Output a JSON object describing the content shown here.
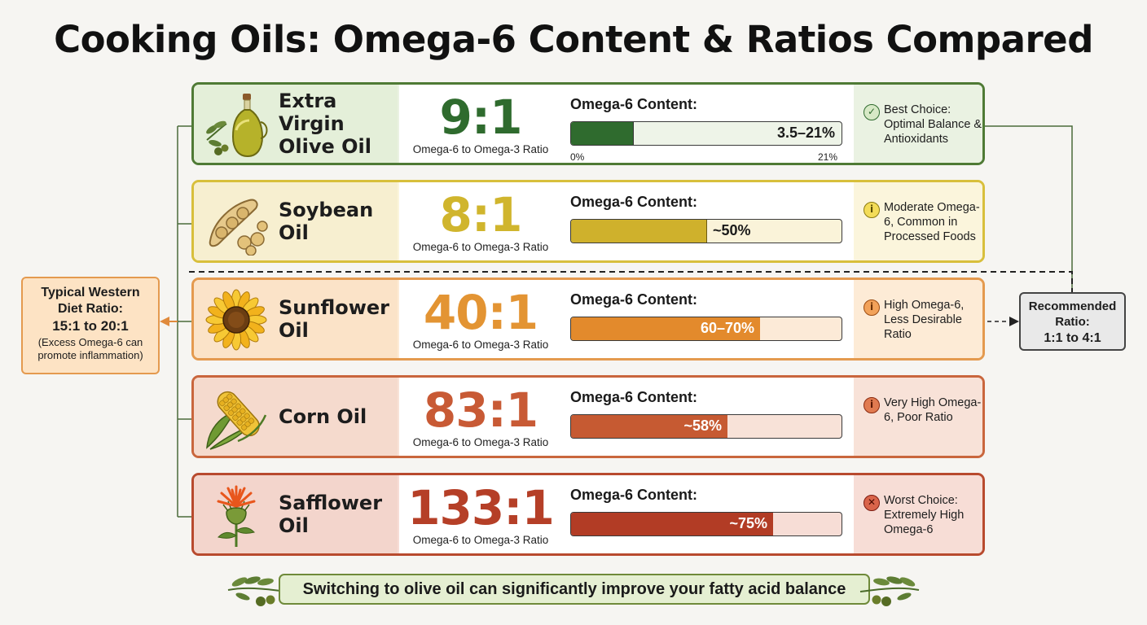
{
  "title": "Cooking Oils: Omega-6 Content & Ratios Compared",
  "ratio_caption": "Omega-6 to Omega-3 Ratio",
  "content_label": "Omega-6 Content:",
  "oils": [
    {
      "name_line1": "Extra Virgin",
      "name_line2": "Olive Oil",
      "icon": "olive-oil-bottle-icon",
      "ratio": "9:1",
      "bar_text": "3.5–21%",
      "bar_fill_fraction": 0.23,
      "axis_min": "0%",
      "axis_max": "21%",
      "note": "Best Choice: Optimal Balance & Antioxidants",
      "note_icon": "checkmark-circle-icon",
      "colors": {
        "border": "#4f7a35",
        "bg": "#eaf2e2",
        "ratio": "#2f6b2e",
        "fill": "#2f6b2e",
        "track": "#eef4e8",
        "icon_bg": "#e4efd9"
      }
    },
    {
      "name_line1": "Soybean",
      "name_line2": "Oil",
      "icon": "soybean-pod-icon",
      "ratio": "8:1",
      "bar_text": "~50%",
      "bar_fill_fraction": 0.5,
      "note": "Moderate Omega-6, Common in Processed Foods",
      "note_icon": "info-circle-icon",
      "colors": {
        "border": "#d8bf3c",
        "bg": "#fbf5dc",
        "ratio": "#d0b52d",
        "fill": "#cfb12c",
        "track": "#faf3d9",
        "icon_bg": "#f7efd0"
      }
    },
    {
      "name_line1": "Sunflower",
      "name_line2": "Oil",
      "icon": "sunflower-icon",
      "ratio": "40:1",
      "bar_text": "60–70%",
      "bar_fill_fraction": 0.7,
      "note": "High Omega-6, Less Desirable Ratio",
      "note_icon": "info-circle-icon",
      "colors": {
        "border": "#e49a4f",
        "bg": "#fdebd6",
        "ratio": "#e39433",
        "fill": "#e38a2c",
        "track": "#fcead7",
        "icon_bg": "#fbe3c8"
      }
    },
    {
      "name_line1": "Corn Oil",
      "name_line2": "",
      "icon": "corn-cob-icon",
      "ratio": "83:1",
      "bar_text": "~58%",
      "bar_fill_fraction": 0.58,
      "note": "Very High Omega-6, Poor Ratio",
      "note_icon": "info-circle-icon",
      "colors": {
        "border": "#c9663d",
        "bg": "#f8e2d8",
        "ratio": "#c85a35",
        "fill": "#c65a32",
        "track": "#f8e2d8",
        "icon_bg": "#f5dacd"
      }
    },
    {
      "name_line1": "Safflower",
      "name_line2": "Oil",
      "icon": "safflower-flower-icon",
      "ratio": "133:1",
      "bar_text": "~75%",
      "bar_fill_fraction": 0.75,
      "note": "Worst Choice: Extremely High Omega-6",
      "note_icon": "x-circle-icon",
      "colors": {
        "border": "#b84a2e",
        "bg": "#f7ddd6",
        "ratio": "#b53f27",
        "fill": "#b23c25",
        "track": "#f7ddd6",
        "icon_bg": "#f3d5cc"
      }
    }
  ],
  "western_diet": {
    "title_line1": "Typical Western",
    "title_line2": "Diet Ratio:",
    "value": "15:1 to 20:1",
    "note_line1": "(Excess Omega-6 can",
    "note_line2": "promote inflammation)"
  },
  "recommended": {
    "title_line1": "Recommended",
    "title_line2": "Ratio:",
    "value": "1:1 to 4:1"
  },
  "footer": "Switching to olive oil can significantly improve your fatty acid balance"
}
